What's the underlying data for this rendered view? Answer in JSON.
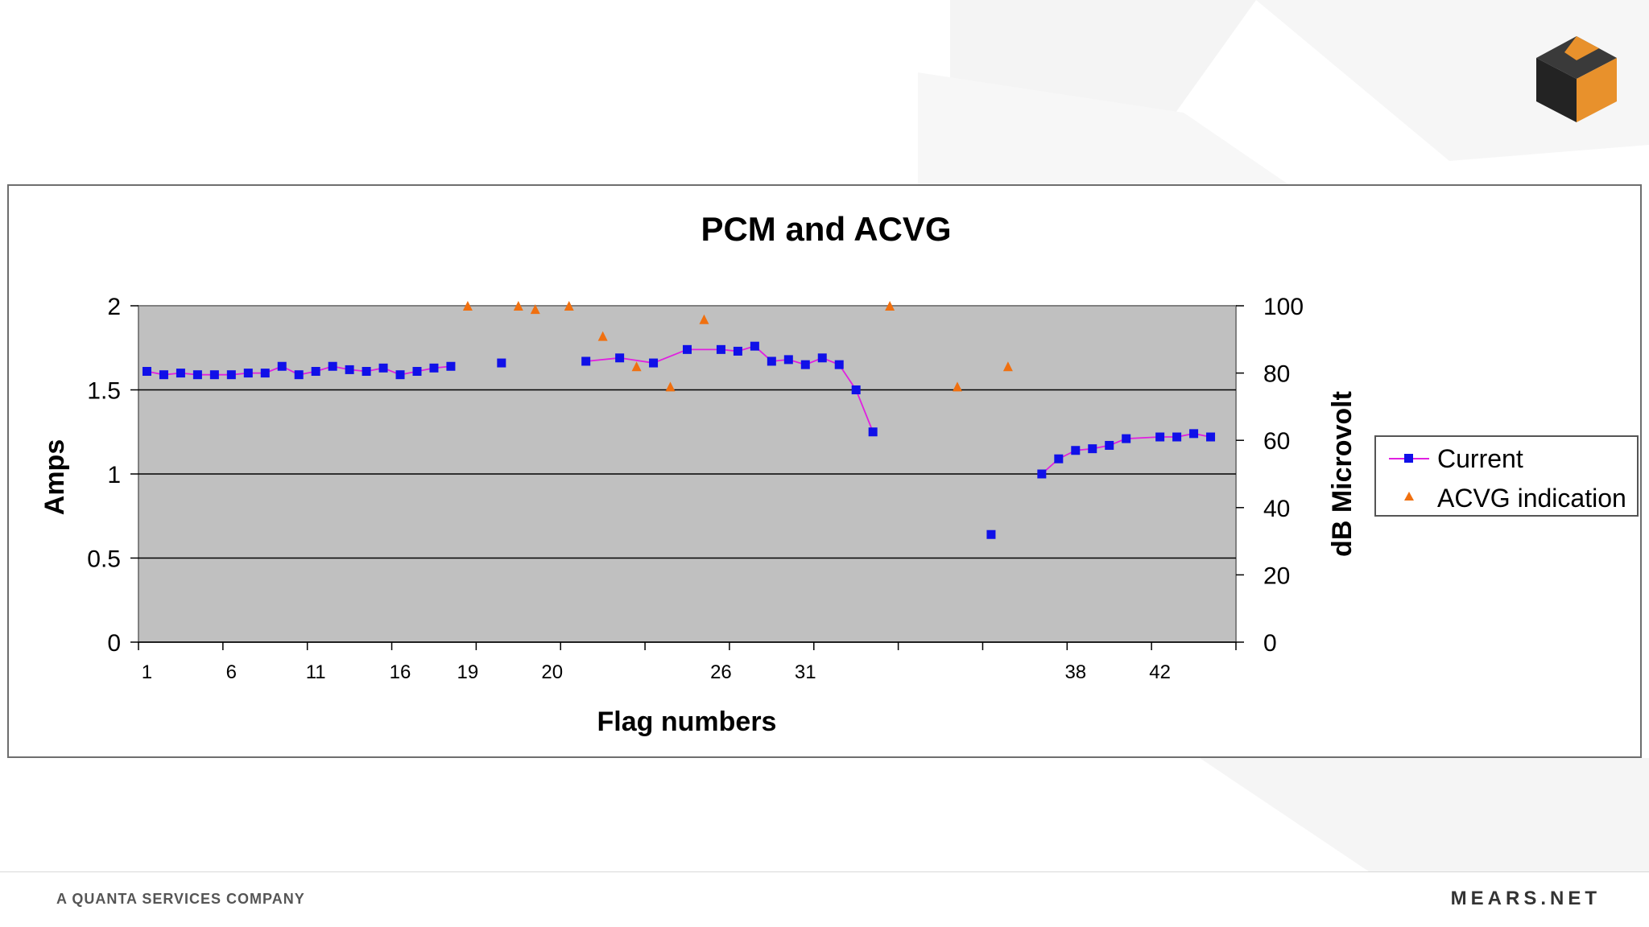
{
  "footer": {
    "company": "A QUANTA SERVICES COMPANY",
    "site": "MEARS.NET"
  },
  "colors": {
    "plot_bg": "#c0c0c0",
    "current_marker": "#1010e8",
    "current_line": "#e020e0",
    "acvg_marker": "#f07010",
    "logo_orange": "#e8912c",
    "logo_dark": "#2a2a2a"
  },
  "icons": {
    "logo": "cube-logo-icon"
  },
  "chart_data": {
    "type": "scatter",
    "title": "PCM and ACVG",
    "xlabel": "Flag numbers",
    "ylabel": "Amps",
    "y2label": "dB Microvolt",
    "ylim": [
      0,
      2
    ],
    "y2lim": [
      0,
      100
    ],
    "yticks": [
      "0",
      "0.5",
      "1",
      "1.5",
      "2"
    ],
    "y2ticks": [
      "0",
      "20",
      "40",
      "60",
      "80",
      "100"
    ],
    "grid": "horizontal",
    "legend_position": "right",
    "x_categories": [
      "1",
      "",
      "",
      "",
      "",
      "6",
      "",
      "",
      "",
      "",
      "11",
      "",
      "",
      "",
      "",
      "16",
      "",
      "",
      "",
      "19",
      "",
      "",
      "",
      "",
      "20",
      "",
      "",
      "",
      "",
      "",
      "",
      "",
      "",
      "",
      "26",
      "",
      "",
      "",
      "",
      "31",
      "",
      "",
      "",
      "",
      "",
      "",
      "",
      "",
      "",
      "",
      "",
      "",
      "",
      "",
      "",
      "38",
      "",
      "",
      "",
      "",
      "42",
      "",
      "",
      "",
      ""
    ],
    "series": [
      {
        "name": "Current",
        "axis": "left",
        "marker": "square",
        "connected": true,
        "points": [
          {
            "x": 1,
            "y": 1.61
          },
          {
            "x": 2,
            "y": 1.59
          },
          {
            "x": 3,
            "y": 1.6
          },
          {
            "x": 4,
            "y": 1.59
          },
          {
            "x": 5,
            "y": 1.59
          },
          {
            "x": 6,
            "y": 1.59
          },
          {
            "x": 7,
            "y": 1.6
          },
          {
            "x": 8,
            "y": 1.6
          },
          {
            "x": 9,
            "y": 1.64
          },
          {
            "x": 10,
            "y": 1.59
          },
          {
            "x": 11,
            "y": 1.61
          },
          {
            "x": 12,
            "y": 1.64
          },
          {
            "x": 13,
            "y": 1.62
          },
          {
            "x": 14,
            "y": 1.61
          },
          {
            "x": 15,
            "y": 1.63
          },
          {
            "x": 16,
            "y": 1.59
          },
          {
            "x": 17,
            "y": 1.61
          },
          {
            "x": 18,
            "y": 1.63
          },
          {
            "x": 19,
            "y": 1.64
          },
          {
            "x": 22,
            "y": 1.66
          },
          {
            "x": 27,
            "y": 1.67
          },
          {
            "x": 29,
            "y": 1.69
          },
          {
            "x": 31,
            "y": 1.66
          },
          {
            "x": 33,
            "y": 1.74
          },
          {
            "x": 35,
            "y": 1.74
          },
          {
            "x": 36,
            "y": 1.73
          },
          {
            "x": 37,
            "y": 1.76
          },
          {
            "x": 38,
            "y": 1.67
          },
          {
            "x": 39,
            "y": 1.68
          },
          {
            "x": 40,
            "y": 1.65
          },
          {
            "x": 41,
            "y": 1.69
          },
          {
            "x": 42,
            "y": 1.65
          },
          {
            "x": 43,
            "y": 1.5
          },
          {
            "x": 44,
            "y": 1.25
          },
          {
            "x": 51,
            "y": 0.64
          },
          {
            "x": 54,
            "y": 1.0
          },
          {
            "x": 55,
            "y": 1.09
          },
          {
            "x": 56,
            "y": 1.14
          },
          {
            "x": 57,
            "y": 1.15
          },
          {
            "x": 58,
            "y": 1.17
          },
          {
            "x": 59,
            "y": 1.21
          },
          {
            "x": 61,
            "y": 1.22
          },
          {
            "x": 62,
            "y": 1.22
          },
          {
            "x": 63,
            "y": 1.24
          },
          {
            "x": 64,
            "y": 1.22
          }
        ],
        "segments": [
          [
            0,
            19
          ],
          [
            20,
            34
          ],
          [
            35,
            45
          ]
        ]
      },
      {
        "name": "ACVG indication",
        "axis": "right",
        "marker": "triangle",
        "connected": false,
        "points": [
          {
            "x": 20,
            "y": 100
          },
          {
            "x": 23,
            "y": 100
          },
          {
            "x": 24,
            "y": 99
          },
          {
            "x": 26,
            "y": 100
          },
          {
            "x": 28,
            "y": 91
          },
          {
            "x": 30,
            "y": 82
          },
          {
            "x": 32,
            "y": 76
          },
          {
            "x": 34,
            "y": 96
          },
          {
            "x": 45,
            "y": 100
          },
          {
            "x": 49,
            "y": 76
          },
          {
            "x": 52,
            "y": 82
          }
        ]
      }
    ]
  }
}
